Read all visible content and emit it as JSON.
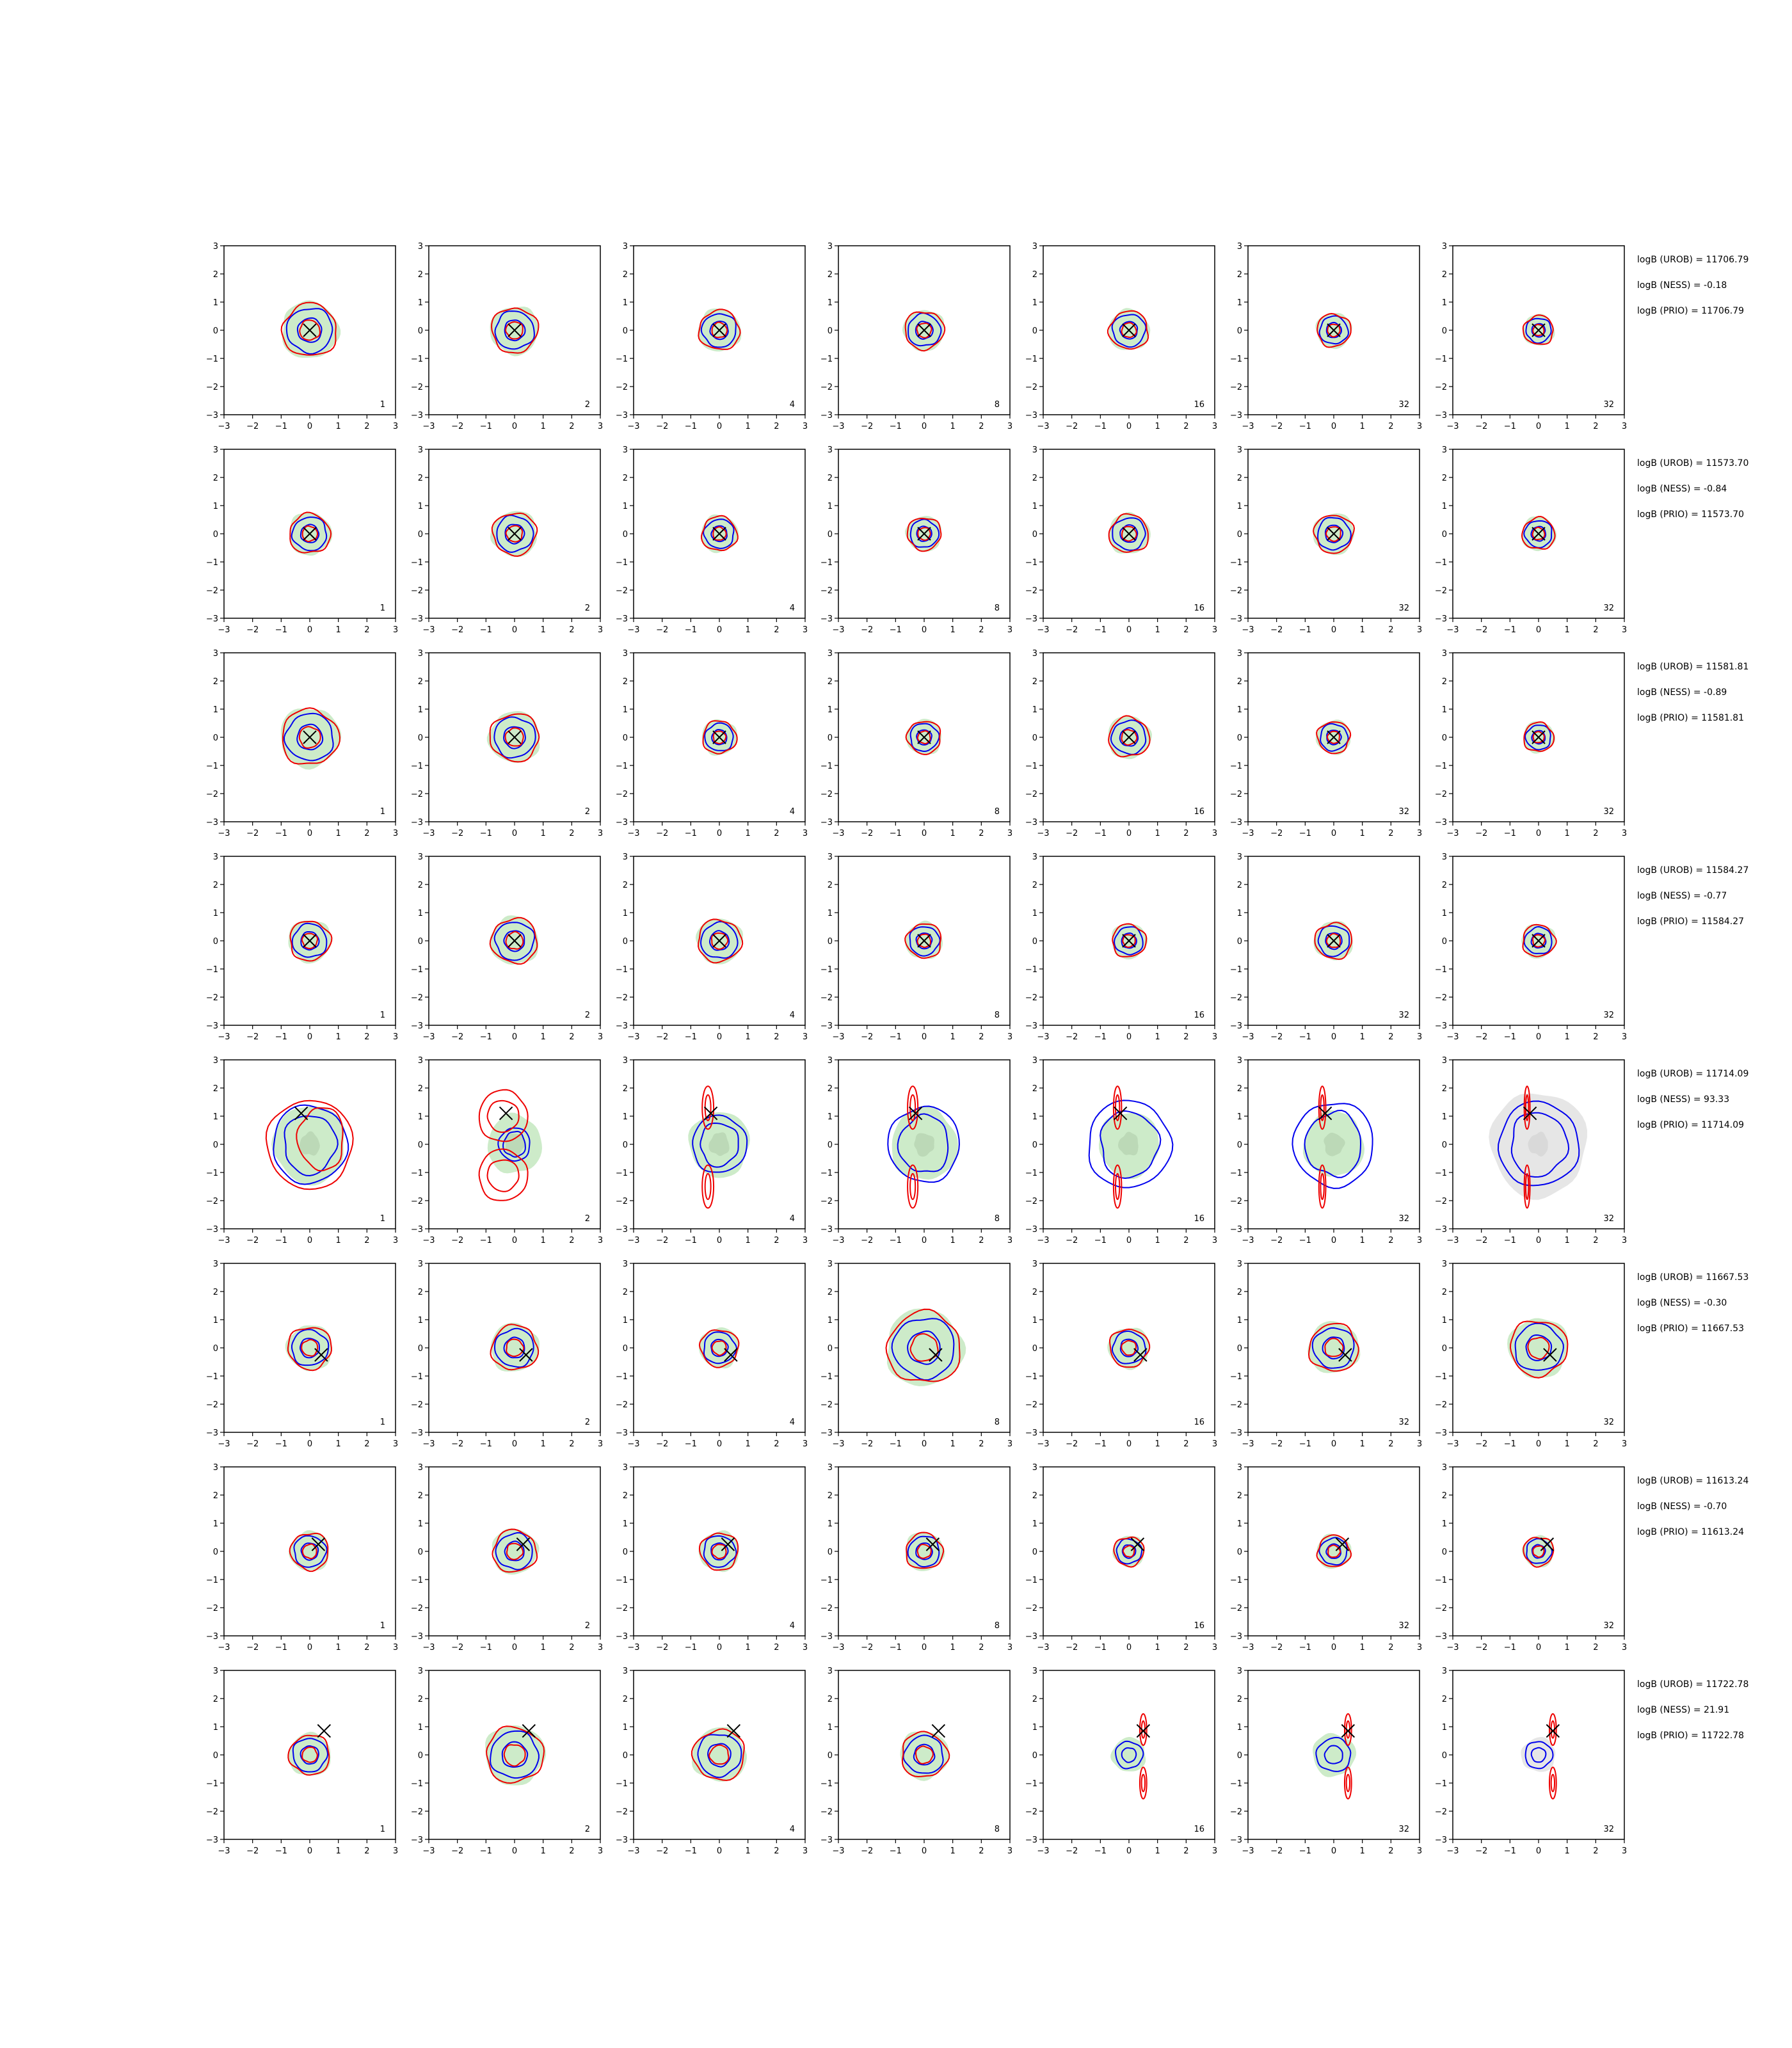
{
  "chart_data": {
    "type": "contour",
    "xlim": [
      -3,
      3
    ],
    "ylim": [
      -3,
      3
    ],
    "xticks": [
      "−3",
      "−2",
      "−1",
      "0",
      "1",
      "2",
      "3"
    ],
    "yticks": [
      "−3",
      "−2",
      "−1",
      "0",
      "1",
      "2",
      "3"
    ],
    "grid": false,
    "legend": "none",
    "colors": {
      "fill": "#cdebc9",
      "fill_dark": "#bcd9b7",
      "gray_fill": "#e6e6e6",
      "blue": "#0000ee",
      "red": "#ee0000",
      "marker": "#000000"
    },
    "column_labels": [
      "1",
      "2",
      "4",
      "8",
      "16",
      "32",
      "32"
    ],
    "rows": [
      {
        "kind": "std",
        "x": [
          0,
          0
        ],
        "spreads": [
          1.0,
          0.85,
          0.75,
          0.72,
          0.72,
          0.62,
          0.55
        ],
        "stats": [
          "logB (UROB) = 11706.79",
          "logB (NESS) = -0.18",
          "logB (PRIO) = 11706.79"
        ]
      },
      {
        "kind": "std",
        "x": [
          0,
          0
        ],
        "spreads": [
          0.75,
          0.8,
          0.65,
          0.62,
          0.72,
          0.72,
          0.6
        ],
        "stats": [
          "logB (UROB) = 11573.70",
          "logB (NESS) = -0.84",
          "logB (PRIO) = 11573.70"
        ]
      },
      {
        "kind": "std",
        "x": [
          0,
          0
        ],
        "spreads": [
          1.05,
          0.9,
          0.62,
          0.62,
          0.75,
          0.6,
          0.55
        ],
        "stats": [
          "logB (UROB) = 11581.81",
          "logB (NESS) = -0.89",
          "logB (PRIO) = 11581.81"
        ]
      },
      {
        "kind": "std",
        "x": [
          0,
          0
        ],
        "spreads": [
          0.75,
          0.85,
          0.8,
          0.65,
          0.62,
          0.68,
          0.6
        ],
        "stats": [
          "logB (UROB) = 11584.27",
          "logB (NESS) = -0.77",
          "logB (PRIO) = 11584.27"
        ]
      },
      {
        "kind": "bimodal",
        "x": [
          -0.3,
          1.1
        ],
        "stats": [
          "logB (UROB) = 11714.09",
          "logB (NESS) = 93.33",
          "logB (PRIO) = 11714.09"
        ]
      },
      {
        "kind": "std",
        "x": [
          0.4,
          -0.25
        ],
        "spreads": [
          0.8,
          0.85,
          0.7,
          1.35,
          0.72,
          0.9,
          1.05
        ],
        "stats": [
          "logB (UROB) = 11667.53",
          "logB (NESS) = -0.30",
          "logB (PRIO) = 11667.53"
        ]
      },
      {
        "kind": "std",
        "x": [
          0.3,
          0.25
        ],
        "spreads": [
          0.7,
          0.8,
          0.7,
          0.68,
          0.55,
          0.6,
          0.55
        ],
        "stats": [
          "logB (UROB) = 11613.24",
          "logB (NESS) = -0.70",
          "logB (PRIO) = 11613.24"
        ]
      },
      {
        "kind": "bimodal2",
        "x": [
          0.5,
          0.85
        ],
        "spreads": [
          0.75,
          1.05,
          0.95,
          0.85,
          0.6,
          0.75,
          0.6
        ],
        "stats": [
          "logB (UROB) = 11722.78",
          "logB (NESS) = 21.91",
          "logB (PRIO) = 11722.78"
        ]
      }
    ]
  }
}
